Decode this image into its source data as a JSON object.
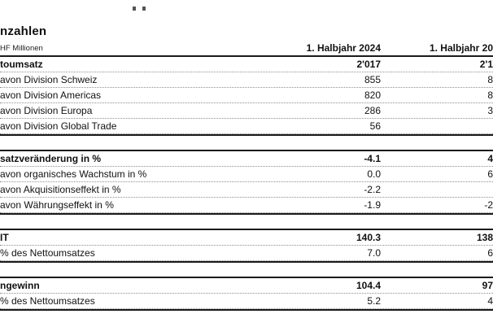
{
  "page": {
    "title": "nzahlen",
    "unit_note": "HF Millionen"
  },
  "table": {
    "columns": [
      "1. Halbjahr 2024",
      "1. Halbjahr 20"
    ],
    "sections": [
      {
        "name": "nettoumsatz",
        "header": {
          "label": "toumsatz",
          "v1": "2'017",
          "v2": "2'1"
        },
        "rows": [
          {
            "label": "avon Division Schweiz",
            "v1": "855",
            "v2": "8"
          },
          {
            "label": "avon Division Americas",
            "v1": "820",
            "v2": "8"
          },
          {
            "label": "avon Division Europa",
            "v1": "286",
            "v2": "3"
          },
          {
            "label": "avon Division Global Trade",
            "v1": "56",
            "v2": ""
          }
        ]
      },
      {
        "name": "umsatzveraenderung",
        "header": {
          "label": "satzveränderung in %",
          "v1": "-4.1",
          "v2": "4"
        },
        "rows": [
          {
            "label": "avon organisches Wachstum in %",
            "v1": "0.0",
            "v2": "6"
          },
          {
            "label": "avon Akquisitionseffekt in %",
            "v1": "-2.2",
            "v2": ""
          },
          {
            "label": "avon Währungseffekt in %",
            "v1": "-1.9",
            "v2": "-2"
          }
        ]
      },
      {
        "name": "ebit",
        "header": {
          "label": "IT",
          "v1": "140.3",
          "v2": "138"
        },
        "rows": [
          {
            "label": "% des Nettoumsatzes",
            "v1": "7.0",
            "v2": "6"
          }
        ]
      },
      {
        "name": "reingewinn",
        "header": {
          "label": "ngewinn",
          "v1": "104.4",
          "v2": "97"
        },
        "rows": [
          {
            "label": "% des Nettoumsatzes",
            "v1": "5.2",
            "v2": "4"
          }
        ]
      }
    ]
  }
}
